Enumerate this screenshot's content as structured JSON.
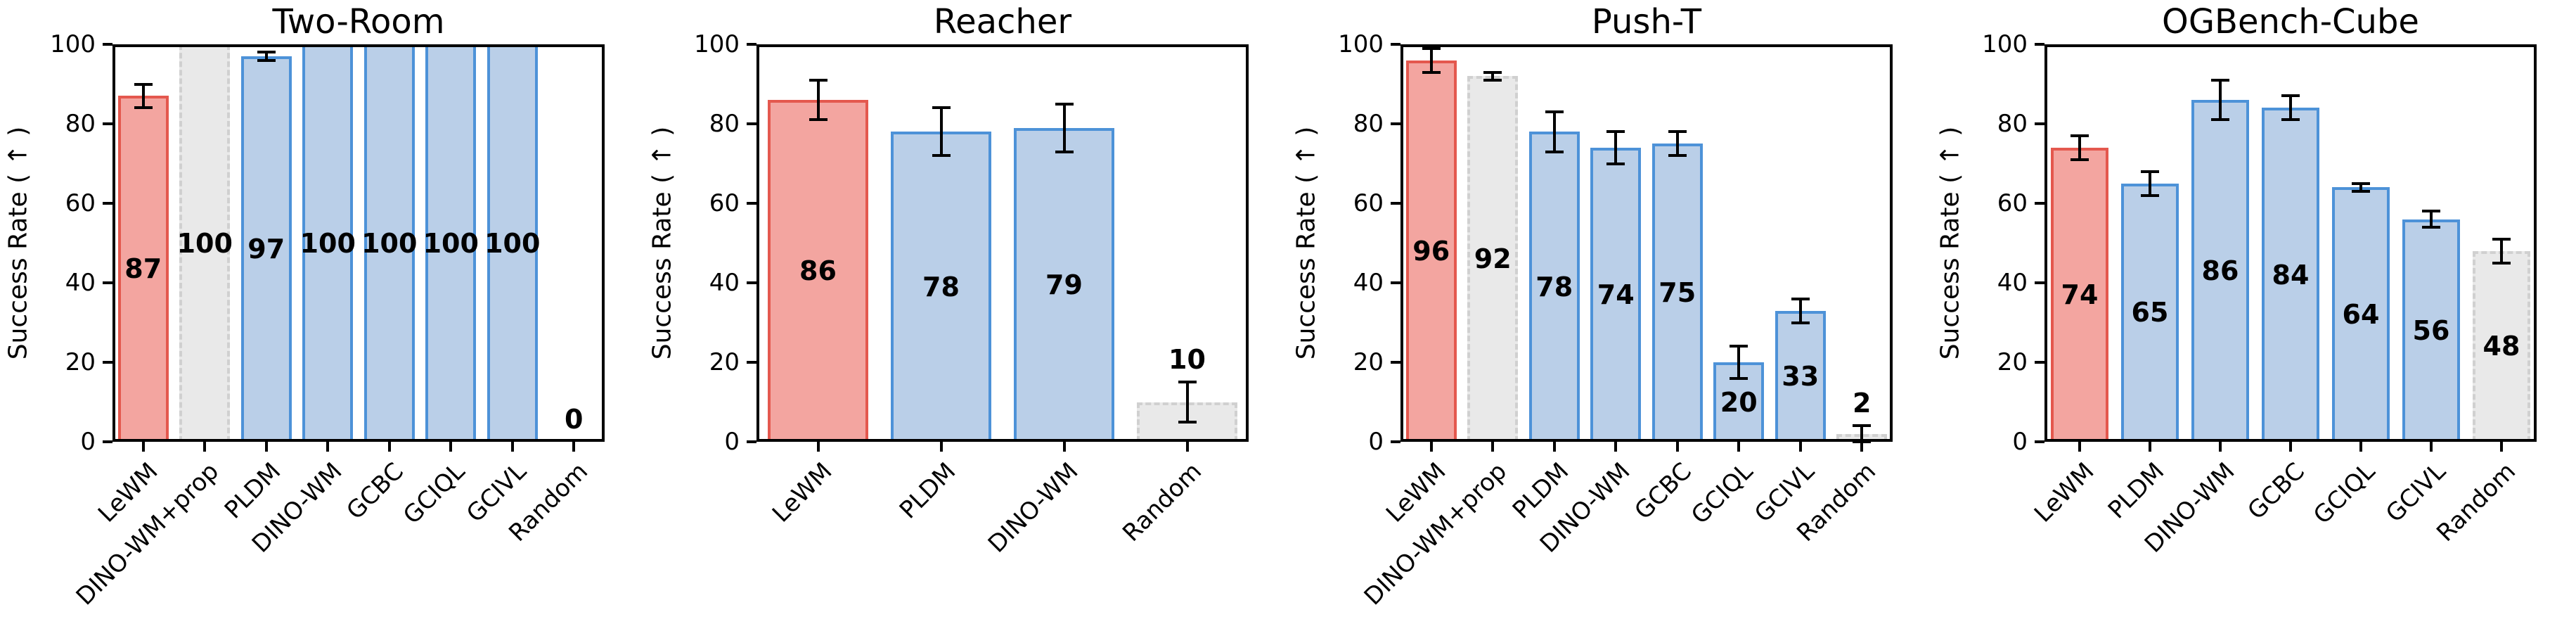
{
  "figure": {
    "ylabel": "Success Rate ( ↑ )",
    "yticks": [
      0,
      20,
      40,
      60,
      80,
      100
    ],
    "ytick_labels": [
      "0",
      "20",
      "40",
      "60",
      "80",
      "100"
    ],
    "ylim": [
      0,
      100
    ],
    "grid": false,
    "legend": "none",
    "colors": {
      "lewm_fill": "#F3A5A0",
      "lewm_edge": "#E4584E",
      "baseline_fill": "#BACFE8",
      "baseline_edge": "#4D92D8",
      "reference_fill": "#E9E9E9",
      "reference_edge": "#D0D0D0",
      "errorbar": "#000000",
      "spine": "#000000",
      "label_text": "#000000"
    }
  },
  "chart_data": [
    {
      "type": "bar",
      "title": "Two-Room",
      "xlabel": "",
      "ylabel": "Success Rate ( ↑ )",
      "ylim": [
        0,
        100
      ],
      "categories": [
        "LeWM",
        "DINO-WM+prop",
        "PLDM",
        "DINO-WM",
        "GCBC",
        "GCIQL",
        "GCIVL",
        "Random"
      ],
      "values": [
        87,
        100,
        97,
        100,
        100,
        100,
        100,
        0
      ],
      "errors": [
        3,
        0,
        1,
        0,
        0,
        0,
        0,
        0
      ],
      "styles": [
        "lewm",
        "reference",
        "baseline",
        "baseline",
        "baseline",
        "baseline",
        "baseline",
        "reference"
      ]
    },
    {
      "type": "bar",
      "title": "Reacher",
      "xlabel": "",
      "ylabel": "Success Rate ( ↑ )",
      "ylim": [
        0,
        100
      ],
      "categories": [
        "LeWM",
        "PLDM",
        "DINO-WM",
        "Random"
      ],
      "values": [
        86,
        78,
        79,
        10
      ],
      "errors": [
        5,
        6,
        6,
        5
      ],
      "styles": [
        "lewm",
        "baseline",
        "baseline",
        "reference"
      ]
    },
    {
      "type": "bar",
      "title": "Push-T",
      "xlabel": "",
      "ylabel": "Success Rate ( ↑ )",
      "ylim": [
        0,
        100
      ],
      "categories": [
        "LeWM",
        "DINO-WM+prop",
        "PLDM",
        "DINO-WM",
        "GCBC",
        "GCIQL",
        "GCIVL",
        "Random"
      ],
      "values": [
        96,
        92,
        78,
        74,
        75,
        20,
        33,
        2
      ],
      "errors": [
        3,
        1,
        5,
        4,
        3,
        4,
        3,
        2
      ],
      "styles": [
        "lewm",
        "reference",
        "baseline",
        "baseline",
        "baseline",
        "baseline",
        "baseline",
        "reference"
      ]
    },
    {
      "type": "bar",
      "title": "OGBench-Cube",
      "xlabel": "",
      "ylabel": "Success Rate ( ↑ )",
      "ylim": [
        0,
        100
      ],
      "categories": [
        "LeWM",
        "PLDM",
        "DINO-WM",
        "GCBC",
        "GCIQL",
        "GCIVL",
        "Random"
      ],
      "values": [
        74,
        65,
        86,
        84,
        64,
        56,
        48
      ],
      "errors": [
        3,
        3,
        5,
        3,
        1,
        2,
        3
      ],
      "styles": [
        "lewm",
        "baseline",
        "baseline",
        "baseline",
        "baseline",
        "baseline",
        "reference"
      ]
    }
  ]
}
